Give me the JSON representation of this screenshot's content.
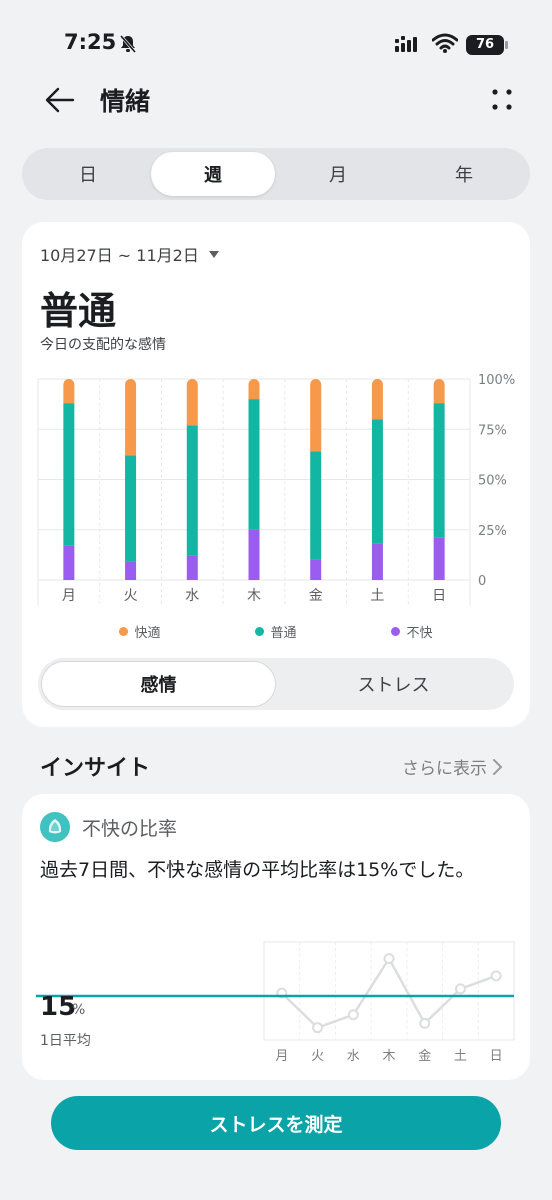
{
  "status": {
    "time": "7:25",
    "battery": "76"
  },
  "header": {
    "title": "情緒"
  },
  "period_tabs": [
    {
      "label": "日"
    },
    {
      "label": "週",
      "active": true
    },
    {
      "label": "月"
    },
    {
      "label": "年"
    }
  ],
  "summary": {
    "date_range": "10月27日 ~ 11月2日",
    "dominant_mood": "普通",
    "dominant_label": "今日の支配的な感情"
  },
  "colors": {
    "comfort": "#f7994a",
    "normal": "#13b5a3",
    "discomfort": "#9b5cf0",
    "accent": "#0aa3a7"
  },
  "chart_data": [
    {
      "type": "bar",
      "stacked": true,
      "categories": [
        "月",
        "火",
        "水",
        "木",
        "金",
        "土",
        "日"
      ],
      "series": [
        {
          "name": "不快",
          "values": [
            17,
            9,
            12,
            25,
            10,
            18,
            21
          ]
        },
        {
          "name": "普通",
          "values": [
            71,
            53,
            65,
            65,
            54,
            62,
            67
          ]
        },
        {
          "name": "快適",
          "values": [
            12,
            38,
            23,
            10,
            36,
            20,
            12
          ]
        }
      ],
      "y_ticks": [
        "100%",
        "75%",
        "50%",
        "25%",
        "0"
      ],
      "ylim": [
        0,
        100
      ],
      "grid": true,
      "legend": "bottom"
    },
    {
      "type": "line",
      "categories": [
        "月",
        "火",
        "水",
        "木",
        "金",
        "土",
        "日"
      ],
      "values": [
        17,
        9,
        12,
        25,
        10,
        18,
        21
      ],
      "average_line": 15,
      "grid": true
    }
  ],
  "legend": [
    {
      "label": "快適",
      "color": "#f7994a"
    },
    {
      "label": "普通",
      "color": "#13b5a3"
    },
    {
      "label": "不快",
      "color": "#9b5cf0"
    }
  ],
  "metric_tabs": [
    {
      "label": "感情",
      "active": true
    },
    {
      "label": "ストレス"
    }
  ],
  "insight": {
    "title": "インサイト",
    "more": "さらに表示",
    "card_title": "不快の比率",
    "text": "過去7日間、不快な感情の平均比率は15%でした。",
    "avg_value": "15",
    "avg_unit": "%",
    "avg_label": "1日平均"
  },
  "bottom_button": "ストレスを測定"
}
